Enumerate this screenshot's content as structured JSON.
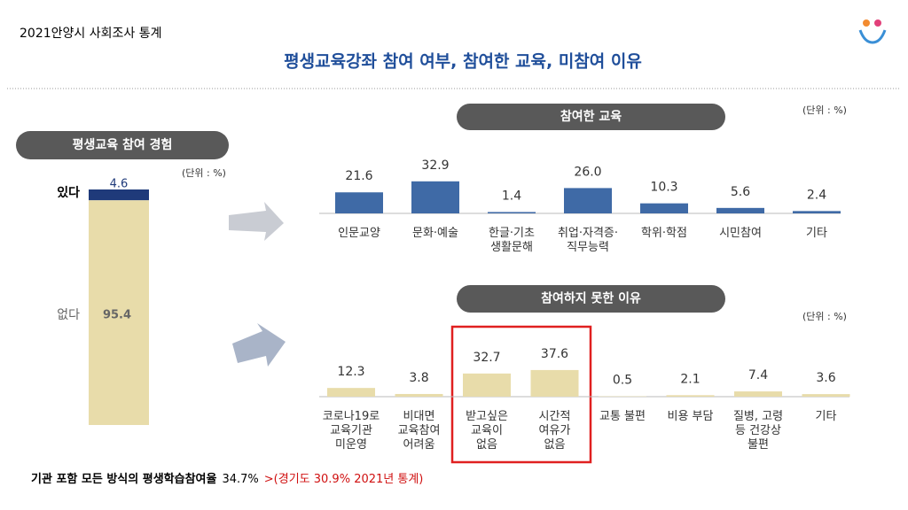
{
  "header": {
    "source": "2021안양시 사회조사 통계",
    "title": "평생교육강좌 참여 여부, 참여한 교육, 미참여 이유"
  },
  "chart_data": [
    {
      "type": "stacked_bar",
      "title": "평생교육 참여 경험",
      "unit": "(단위 : %)",
      "series": [
        {
          "name": "있다",
          "color": "#1f3a7a",
          "values": [
            4.6
          ]
        },
        {
          "name": "없다",
          "color": "#e8dcaa",
          "values": [
            95.4
          ]
        }
      ]
    },
    {
      "type": "bar",
      "title": "참여한 교육",
      "unit": "(단위 : %)",
      "color": "#3f6aa6",
      "categories": [
        [
          "인문교양"
        ],
        [
          "문화·예술"
        ],
        [
          "한글·기초",
          "생활문해"
        ],
        [
          "취업·자격증·",
          "직무능력"
        ],
        [
          "학위·학점"
        ],
        [
          "시민참여"
        ],
        [
          "기타"
        ]
      ],
      "values": [
        21.6,
        32.9,
        1.4,
        26.0,
        10.3,
        5.6,
        2.4
      ],
      "value_labels": [
        "21.6",
        "32.9",
        "1.4",
        "26.0",
        "10.3",
        "5.6",
        "2.4"
      ]
    },
    {
      "type": "bar",
      "title": "참여하지 못한 이유",
      "unit": "(단위 : %)",
      "color": "#e8dcaa",
      "highlight_color": "#e02020",
      "categories": [
        [
          "코로나19로",
          "교육기관",
          "미운영"
        ],
        [
          "비대면",
          "교육참여",
          "어려움"
        ],
        [
          "받고싶은",
          "교육이",
          "없음"
        ],
        [
          "시간적",
          "여유가",
          "없음"
        ],
        [
          "교통 불편"
        ],
        [
          "비용 부담"
        ],
        [
          "질병, 고령",
          "등 건강상",
          "불편"
        ],
        [
          "기타"
        ]
      ],
      "values": [
        12.3,
        3.8,
        32.7,
        37.6,
        0.5,
        2.1,
        7.4,
        3.6
      ],
      "highlight": [
        2,
        3
      ]
    }
  ],
  "footer": {
    "label": "기관 포함 모든 방식의 평생학습참여율",
    "value": "34.7%",
    "compare": ">(경기도 30.9% 2021년 통계)"
  }
}
